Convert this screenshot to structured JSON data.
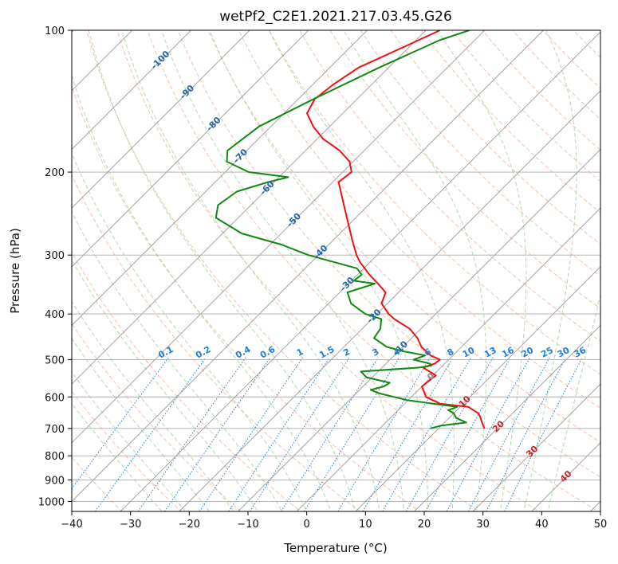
{
  "chart_data": {
    "type": "line",
    "chart_kind": "skew-T log-P diagram",
    "title": "wetPf2_C2E1.2021.217.03.45.G26",
    "xlabel": "Temperature (°C)",
    "ylabel": "Pressure (hPa)",
    "xlim": [
      -40,
      50
    ],
    "ylim": [
      1050,
      100
    ],
    "y_scale": "log",
    "x_ticks": [
      -40,
      -30,
      -20,
      -10,
      0,
      10,
      20,
      30,
      40,
      50
    ],
    "x_tick_labels": [
      "−40",
      "−30",
      "−20",
      "−10",
      "0",
      "10",
      "20",
      "30",
      "40",
      "50"
    ],
    "y_ticks": [
      100,
      200,
      300,
      400,
      500,
      600,
      700,
      800,
      900,
      1000
    ],
    "y_tick_labels": [
      "100",
      "200",
      "300",
      "400",
      "500",
      "600",
      "700",
      "800",
      "900",
      "1000"
    ],
    "grid": true,
    "colors": {
      "temperature": "#ee1111",
      "dewpoint": "#118811",
      "isotherm": "#999999",
      "dry_adiabat": "#f7a98a",
      "moist_adiabat": "#a6d4a0",
      "mixing_ratio": "#1e7fd8",
      "isobar_grid": "#aaaaaa"
    },
    "series": [
      {
        "key": "temperature",
        "color": "#ee1111",
        "points": [
          [
            100,
            -57.6
          ],
          [
            110,
            -61.5
          ],
          [
            120,
            -65.1
          ],
          [
            130,
            -66.5
          ],
          [
            140,
            -67.2
          ],
          [
            150,
            -66.1
          ],
          [
            160,
            -62.8
          ],
          [
            170,
            -59.0
          ],
          [
            180,
            -54.2
          ],
          [
            190,
            -50.6
          ],
          [
            200,
            -48.5
          ],
          [
            210,
            -49.0
          ],
          [
            250,
            -41.5
          ],
          [
            280,
            -36.6
          ],
          [
            300,
            -33.5
          ],
          [
            310,
            -31.8
          ],
          [
            330,
            -28.0
          ],
          [
            345,
            -25.0
          ],
          [
            360,
            -22.2
          ],
          [
            380,
            -21.0
          ],
          [
            400,
            -18.0
          ],
          [
            410,
            -16.2
          ],
          [
            430,
            -11.9
          ],
          [
            450,
            -9.0
          ],
          [
            470,
            -6.8
          ],
          [
            490,
            -3.8
          ],
          [
            500,
            -1.5
          ],
          [
            510,
            -1.7
          ],
          [
            520,
            -3.0
          ],
          [
            540,
            0.5
          ],
          [
            570,
            0.0
          ],
          [
            600,
            2.5
          ],
          [
            620,
            6.0
          ],
          [
            630,
            11.4
          ],
          [
            650,
            14.2
          ],
          [
            660,
            15.0
          ],
          [
            680,
            16.4
          ],
          [
            700,
            17.8
          ]
        ]
      },
      {
        "key": "dewpoint",
        "color": "#118811",
        "points": [
          [
            100,
            -52.6
          ],
          [
            105,
            -56.0
          ],
          [
            120,
            -61.6
          ],
          [
            140,
            -67.4
          ],
          [
            160,
            -72.0
          ],
          [
            180,
            -73.3
          ],
          [
            190,
            -71.5
          ],
          [
            200,
            -66.0
          ],
          [
            205,
            -58.4
          ],
          [
            210,
            -61.0
          ],
          [
            220,
            -64.7
          ],
          [
            235,
            -65.6
          ],
          [
            250,
            -63.8
          ],
          [
            270,
            -56.7
          ],
          [
            285,
            -48.1
          ],
          [
            300,
            -41.7
          ],
          [
            320,
            -31.2
          ],
          [
            330,
            -29.3
          ],
          [
            340,
            -29.6
          ],
          [
            345,
            -25.5
          ],
          [
            360,
            -28.7
          ],
          [
            380,
            -26.2
          ],
          [
            400,
            -22.0
          ],
          [
            410,
            -18.4
          ],
          [
            430,
            -16.9
          ],
          [
            450,
            -16.4
          ],
          [
            470,
            -12.7
          ],
          [
            480,
            -9.2
          ],
          [
            490,
            -4.7
          ],
          [
            500,
            -6.0
          ],
          [
            510,
            -2.5
          ],
          [
            515,
            -1.9
          ],
          [
            520,
            -3.8
          ],
          [
            530,
            -12.9
          ],
          [
            545,
            -11.0
          ],
          [
            560,
            -6.1
          ],
          [
            570,
            -6.5
          ],
          [
            580,
            -8.1
          ],
          [
            590,
            -6.0
          ],
          [
            610,
            0.0
          ],
          [
            630,
            9.5
          ],
          [
            640,
            8.5
          ],
          [
            650,
            10.0
          ],
          [
            665,
            11.2
          ],
          [
            680,
            13.7
          ],
          [
            690,
            10.0
          ],
          [
            700,
            8.6
          ]
        ]
      }
    ],
    "isotherm_labels": [
      {
        "t": -100,
        "label": "-100"
      },
      {
        "t": -90,
        "label": "-90"
      },
      {
        "t": -80,
        "label": "-80"
      },
      {
        "t": -70,
        "label": "-70"
      },
      {
        "t": -60,
        "label": "-60"
      },
      {
        "t": -50,
        "label": "-50"
      },
      {
        "t": -40,
        "label": "-40"
      },
      {
        "t": -30,
        "label": "-30"
      },
      {
        "t": -20,
        "label": "-20"
      },
      {
        "t": -10,
        "label": "-10"
      },
      {
        "t": 0,
        "label": "0"
      },
      {
        "t": 10,
        "label": "10"
      },
      {
        "t": 20,
        "label": "20"
      },
      {
        "t": 30,
        "label": "30"
      },
      {
        "t": 40,
        "label": "40"
      }
    ],
    "mixing_ratio_lines": [
      {
        "w": 0.1,
        "label": "0.1"
      },
      {
        "w": 0.2,
        "label": "0.2"
      },
      {
        "w": 0.4,
        "label": "0.4"
      },
      {
        "w": 0.6,
        "label": "0.6"
      },
      {
        "w": 1,
        "label": "1"
      },
      {
        "w": 1.5,
        "label": "1.5"
      },
      {
        "w": 2,
        "label": "2"
      },
      {
        "w": 3,
        "label": "3"
      },
      {
        "w": 4,
        "label": "4"
      },
      {
        "w": 6,
        "label": "6"
      },
      {
        "w": 8,
        "label": "8"
      },
      {
        "w": 10,
        "label": "10"
      },
      {
        "w": 13,
        "label": "13"
      },
      {
        "w": 16,
        "label": "16"
      },
      {
        "w": 20,
        "label": "20"
      },
      {
        "w": 25,
        "label": "25"
      },
      {
        "w": 30,
        "label": "30"
      },
      {
        "w": 36,
        "label": "36"
      }
    ]
  }
}
